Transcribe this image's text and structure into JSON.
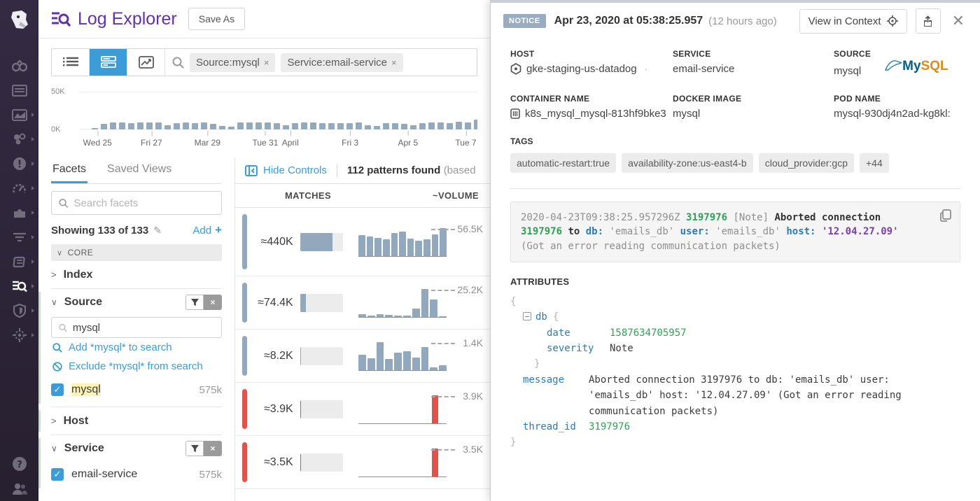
{
  "nav": {
    "items": [
      "watchdog",
      "dashboards",
      "metrics",
      "infrastructure",
      "monitors",
      "apm",
      "integrations",
      "traces",
      "notebooks",
      "logs",
      "security",
      "synthetics"
    ],
    "active": "logs"
  },
  "header": {
    "title": "Log Explorer",
    "save_as": "Save As"
  },
  "toolbar": {
    "filters": [
      {
        "label": "Source:mysql",
        "remove": "×"
      },
      {
        "label": "Service:email-service",
        "remove": "×"
      }
    ]
  },
  "timeline": {
    "y_top": "50K",
    "y_bottom": "0K",
    "max_y": "50K",
    "bars": [
      0.15,
      0.5,
      0.6,
      0.65,
      0.55,
      0.6,
      0.65,
      0.6,
      0.35,
      0.55,
      0.6,
      0.55,
      0.6,
      0.5,
      0.3,
      0.25,
      0.65,
      0.6,
      0.6,
      0.6,
      0.55,
      0.35,
      0.55,
      0.65,
      0.65,
      0.55,
      0.55,
      0.55,
      0.55,
      0.6,
      0.35,
      0.3,
      0.55,
      0.55,
      0.5,
      0.35,
      0.55,
      0.6,
      0.6,
      0.55,
      0.7,
      0.65,
      0.85,
      0.6
    ],
    "ticks": [
      {
        "label": "Wed 25",
        "pct": 1.5
      },
      {
        "label": "Fri 27",
        "pct": 15.5
      },
      {
        "label": "Mar 29",
        "pct": 30
      },
      {
        "label": "Tue 31",
        "pct": 45
      },
      {
        "label": "April",
        "pct": 51.5
      },
      {
        "label": "Fri 3",
        "pct": 67
      },
      {
        "label": "Apr 5",
        "pct": 82
      },
      {
        "label": "Tue 7",
        "pct": 97
      }
    ]
  },
  "facets": {
    "tab_facets": "Facets",
    "tab_saved": "Saved Views",
    "search_placeholder": "Search facets",
    "showing": "Showing 133 of 133",
    "add": "Add",
    "core": "CORE",
    "index": "Index",
    "source": {
      "name": "Source",
      "search_value": "mysql",
      "add_link": "Add *mysql* to search",
      "exclude_link": "Exclude *mysql* from search",
      "item": "mysql",
      "count": "575k"
    },
    "host": "Host",
    "service": {
      "name": "Service",
      "item": "email-service",
      "count": "575k"
    }
  },
  "controls": {
    "hide_controls": "Hide Controls",
    "patterns_found": "112 patterns found",
    "patterns_suffix": "(based"
  },
  "patterns": {
    "headers": {
      "matches": "MATCHES",
      "volume": "~VOLUME"
    },
    "rows": [
      {
        "tone": "slate",
        "matches": "≈440K",
        "fill": 0.76,
        "chart": {
          "bars": [
            0.75,
            0.7,
            0.66,
            0.6,
            0.82,
            0.88,
            0.62,
            0.55,
            0.6,
            0.78,
            1.0
          ],
          "peak": "56.5K"
        }
      },
      {
        "tone": "slate",
        "matches": "≈74.4K",
        "fill": 0.14,
        "chart": {
          "bars": [
            0.09,
            0.06,
            0.1,
            0.07,
            0.05,
            0.04,
            0.3,
            1.0,
            0.62,
            0.02
          ],
          "peak": "25.2K"
        }
      },
      {
        "tone": "slate",
        "matches": "≈8.2K",
        "fill": 0.02,
        "chart": {
          "bars": [
            0.55,
            0.42,
            1.0,
            0.4,
            0.62,
            0.68,
            0.45,
            0.82,
            0.1,
            0.18
          ],
          "peak": "1.4K"
        }
      },
      {
        "tone": "red",
        "matches": "≈3.9K",
        "fill": 0.01,
        "chart": {
          "bars": [
            0,
            0,
            0,
            0,
            0,
            0,
            0,
            0,
            0,
            1,
            0
          ],
          "peak": "3.9K"
        }
      },
      {
        "tone": "red",
        "matches": "≈3.5K",
        "fill": 0.02,
        "chart": {
          "bars": [
            0,
            0,
            0,
            0,
            0,
            0,
            0,
            0,
            0,
            1,
            0
          ],
          "peak": "3.5K"
        }
      }
    ]
  },
  "panel": {
    "level": "NOTICE",
    "timestamp": "Apr 23, 2020 at 05:38:25.957",
    "ago": "(12 hours ago)",
    "view_in_context": "View in Context",
    "meta": {
      "host_label": "HOST",
      "host": "gke-staging-us-datadog",
      "host_sep": "·",
      "service_label": "SERVICE",
      "service": "email-service",
      "source_label": "SOURCE",
      "source": "mysql",
      "container_label": "CONTAINER NAME",
      "container": "k8s_mysql_mysql-813hf9bke3",
      "docker_label": "DOCKER IMAGE",
      "docker": "mysql",
      "pod_label": "POD NAME",
      "pod": "mysql-930dj4n2ad-kg8kl:"
    },
    "mysql_logo": {
      "my": "My",
      "sql": "SQL"
    },
    "tags_label": "TAGS",
    "tags": [
      "automatic-restart:true",
      "availability-zone:us-east4-b",
      "cloud_provider:gcp",
      "+44"
    ],
    "message": {
      "tokens": [
        {
          "t": "2020-04-23T09:38:25.957296Z ",
          "c": "dim"
        },
        {
          "t": "3197976",
          "c": "num"
        },
        {
          "t": " [Note] ",
          "c": "dim"
        },
        {
          "t": "Aborted connection ",
          "c": "strong"
        },
        {
          "t": "3197976",
          "c": "num"
        },
        {
          "t": " to ",
          "c": "strong"
        },
        {
          "t": "db:",
          "c": "key"
        },
        {
          "t": " 'emails_db' ",
          "c": "dim"
        },
        {
          "t": "user:",
          "c": "key"
        },
        {
          "t": " 'emails_db' ",
          "c": "dim"
        },
        {
          "t": "host:",
          "c": "key"
        },
        {
          "t": " ",
          "c": "dim"
        },
        {
          "t": "'12.04.27.09'",
          "c": "ip"
        },
        {
          "t": " (Got an error reading communication packets)",
          "c": "dim"
        }
      ]
    },
    "attributes_label": "ATTRIBUTES",
    "attributes": {
      "open": "{",
      "close": "}",
      "db_key": "db",
      "db_open": "{",
      "db_close": "}",
      "date_key": "date",
      "date_val": "1587634705957",
      "severity_key": "severity",
      "severity_val": "Note",
      "message_key": "message",
      "message_val": "Aborted connection 3197976 to db: 'emails_db' user: 'emails_db' host: '12.04.27.09' (Got an error reading communication packets)",
      "thread_key": "thread_id",
      "thread_val": "3197976"
    }
  }
}
